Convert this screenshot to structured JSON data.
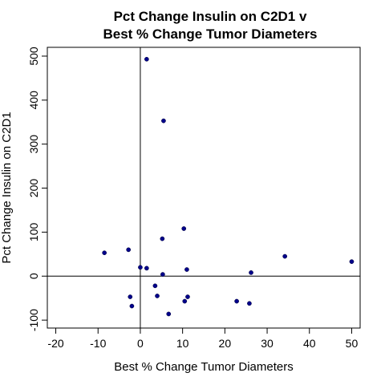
{
  "chart_data": {
    "type": "scatter",
    "title": "Pct Change Insulin on C2D1 v",
    "subtitle": "Best % Change Tumor Diameters",
    "xlabel": "Best % Change Tumor Diameters",
    "ylabel": "Pct Change Insulin on C2D1",
    "xlim": [
      -22,
      52
    ],
    "ylim": [
      -118,
      520
    ],
    "xticks": [
      -20,
      -10,
      0,
      10,
      20,
      30,
      40,
      50
    ],
    "yticks": [
      -100,
      0,
      100,
      200,
      300,
      400,
      500
    ],
    "reference_lines": {
      "vertical_x": 0,
      "horizontal_y": 0
    },
    "grid": false,
    "point_color": "#00008b",
    "points": [
      {
        "x": 1.5,
        "y": 493
      },
      {
        "x": 5.5,
        "y": 353
      },
      {
        "x": 10.3,
        "y": 108
      },
      {
        "x": 5.2,
        "y": 85
      },
      {
        "x": -8.5,
        "y": 53
      },
      {
        "x": -2.8,
        "y": 60
      },
      {
        "x": 34.2,
        "y": 45
      },
      {
        "x": 50.0,
        "y": 33
      },
      {
        "x": 0.0,
        "y": 20
      },
      {
        "x": 1.5,
        "y": 18
      },
      {
        "x": 11.0,
        "y": 15
      },
      {
        "x": 5.3,
        "y": 4
      },
      {
        "x": 26.2,
        "y": 8
      },
      {
        "x": 3.5,
        "y": -22
      },
      {
        "x": -2.4,
        "y": -47
      },
      {
        "x": 4.0,
        "y": -45
      },
      {
        "x": 11.2,
        "y": -47
      },
      {
        "x": -2.0,
        "y": -68
      },
      {
        "x": 10.5,
        "y": -57
      },
      {
        "x": 22.8,
        "y": -57
      },
      {
        "x": 25.8,
        "y": -62
      },
      {
        "x": 6.7,
        "y": -86
      }
    ]
  }
}
